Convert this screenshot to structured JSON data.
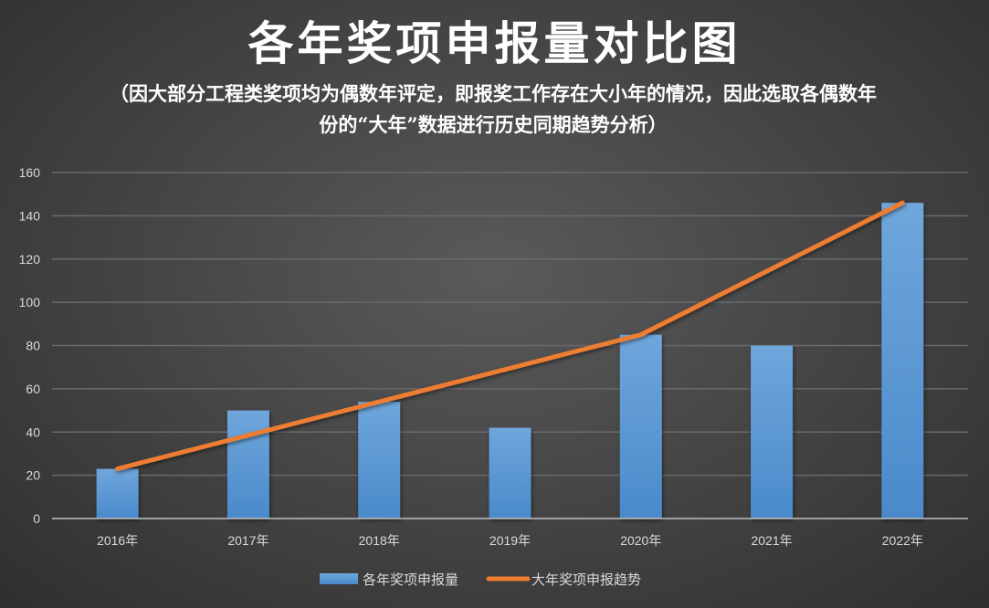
{
  "chart_data": {
    "type": "bar",
    "title": "各年奖项申报量对比图",
    "subtitle": "（因大部分工程类奖项均为偶数年评定，即报奖工作存在大小年的情况，因此选取各偶数年份的“大年”数据进行历史同期趋势分析）",
    "categories": [
      "2016年",
      "2017年",
      "2018年",
      "2019年",
      "2020年",
      "2021年",
      "2022年"
    ],
    "series": [
      {
        "name": "各年奖项申报量",
        "type": "bar",
        "color": "#5b9bd5",
        "values": [
          23,
          50,
          54,
          42,
          85,
          80,
          146
        ]
      },
      {
        "name": "大年奖项申报趋势",
        "type": "line",
        "color": "#ed7d31",
        "values": [
          23,
          null,
          54,
          null,
          85,
          null,
          146
        ]
      }
    ],
    "ylim": [
      0,
      160
    ],
    "yticks": [
      0,
      20,
      40,
      60,
      80,
      100,
      120,
      140,
      160
    ],
    "grid": true,
    "legend": "bottom",
    "xlabel": "",
    "ylabel": ""
  }
}
